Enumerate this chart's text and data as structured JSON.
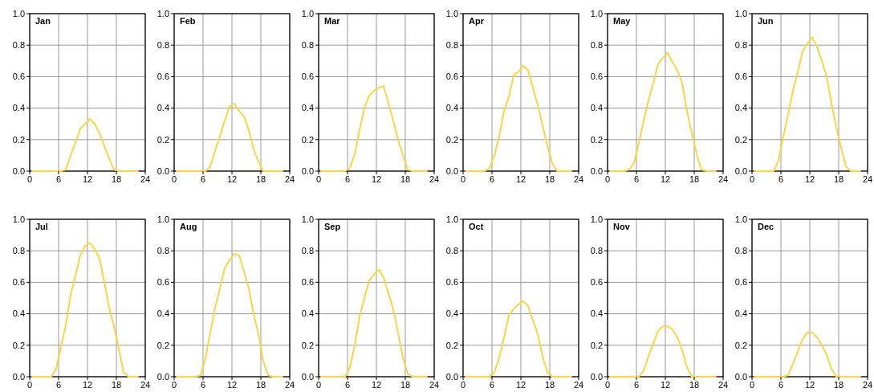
{
  "chart_data": [
    {
      "type": "line",
      "title": "Jan",
      "x": [
        0.5,
        1.5,
        2.5,
        3.5,
        4.5,
        5.5,
        6.5,
        7.5,
        8.5,
        9.5,
        10.5,
        11.5,
        12.5,
        13.5,
        14.5,
        15.5,
        16.5,
        17.5,
        18.5,
        19.5,
        20.5,
        21.5,
        22.5
      ],
      "series": [
        {
          "color": "#fdd541",
          "values": [
            0,
            0,
            0,
            0,
            0,
            0,
            0,
            0.01,
            0.1,
            0.18,
            0.27,
            0.3,
            0.33,
            0.3,
            0.24,
            0.16,
            0.08,
            0.01,
            0,
            0,
            0,
            0,
            0
          ]
        }
      ],
      "xlim": [
        0,
        24
      ],
      "ylim": [
        0,
        1
      ],
      "xticks": [
        0,
        6,
        12,
        18,
        24
      ],
      "yticks": [
        {
          "value": 0,
          "label": "0.0"
        },
        {
          "value": 0.2,
          "label": "0.2"
        },
        {
          "value": 0.4,
          "label": "0.4"
        },
        {
          "value": 0.6,
          "label": "0.6"
        },
        {
          "value": 0.8,
          "label": "0.8"
        },
        {
          "value": 1,
          "label": "1.0"
        }
      ],
      "grid": true
    },
    {
      "type": "line",
      "title": "Feb",
      "x": [
        0.5,
        1.5,
        2.5,
        3.5,
        4.5,
        5.5,
        6.5,
        7.5,
        8.5,
        9.5,
        10.5,
        11.5,
        12.5,
        13.5,
        14.5,
        15.5,
        16.5,
        17.5,
        18.5,
        19.5,
        20.5,
        21.5,
        22.5
      ],
      "series": [
        {
          "color": "#fdd541",
          "values": [
            0,
            0,
            0,
            0,
            0,
            0,
            0,
            0.03,
            0.13,
            0.22,
            0.32,
            0.41,
            0.43,
            0.38,
            0.35,
            0.26,
            0.14,
            0.06,
            0,
            0,
            0,
            0,
            0
          ]
        }
      ],
      "xlim": [
        0,
        24
      ],
      "ylim": [
        0,
        1
      ],
      "xticks": [
        0,
        6,
        12,
        18,
        24
      ],
      "yticks": [
        {
          "value": 0,
          "label": "0.0"
        },
        {
          "value": 0.2,
          "label": "0.2"
        },
        {
          "value": 0.4,
          "label": "0.4"
        },
        {
          "value": 0.6,
          "label": "0.6"
        },
        {
          "value": 0.8,
          "label": "0.8"
        },
        {
          "value": 1,
          "label": "1.0"
        }
      ],
      "grid": true
    },
    {
      "type": "line",
      "title": "Mar",
      "x": [
        0.5,
        1.5,
        2.5,
        3.5,
        4.5,
        5.5,
        6.5,
        7.5,
        8.5,
        9.5,
        10.5,
        11.5,
        12.5,
        13.5,
        14.5,
        15.5,
        16.5,
        17.5,
        18.5,
        19.5,
        20.5,
        21.5,
        22.5
      ],
      "series": [
        {
          "color": "#fdd541",
          "values": [
            0,
            0,
            0,
            0,
            0,
            0,
            0.02,
            0.11,
            0.26,
            0.4,
            0.48,
            0.51,
            0.53,
            0.54,
            0.43,
            0.32,
            0.2,
            0.1,
            0.01,
            0,
            0,
            0,
            0
          ]
        }
      ],
      "xlim": [
        0,
        24
      ],
      "ylim": [
        0,
        1
      ],
      "xticks": [
        0,
        6,
        12,
        18,
        24
      ],
      "yticks": [
        {
          "value": 0,
          "label": "0.0"
        },
        {
          "value": 0.2,
          "label": "0.2"
        },
        {
          "value": 0.4,
          "label": "0.4"
        },
        {
          "value": 0.6,
          "label": "0.6"
        },
        {
          "value": 0.8,
          "label": "0.8"
        },
        {
          "value": 1,
          "label": "1.0"
        }
      ],
      "grid": true
    },
    {
      "type": "line",
      "title": "Apr",
      "x": [
        0.5,
        1.5,
        2.5,
        3.5,
        4.5,
        5.5,
        6.5,
        7.5,
        8.5,
        9.5,
        10.5,
        11.5,
        12.5,
        13.5,
        14.5,
        15.5,
        16.5,
        17.5,
        18.5,
        19.5,
        20.5,
        21.5,
        22.5
      ],
      "series": [
        {
          "color": "#fdd541",
          "values": [
            0,
            0,
            0,
            0,
            0,
            0.02,
            0.1,
            0.22,
            0.38,
            0.47,
            0.61,
            0.63,
            0.67,
            0.64,
            0.53,
            0.42,
            0.29,
            0.16,
            0.05,
            0,
            0,
            0,
            0
          ]
        }
      ],
      "xlim": [
        0,
        24
      ],
      "ylim": [
        0,
        1
      ],
      "xticks": [
        0,
        6,
        12,
        18,
        24
      ],
      "yticks": [
        {
          "value": 0,
          "label": "0.0"
        },
        {
          "value": 0.2,
          "label": "0.2"
        },
        {
          "value": 0.4,
          "label": "0.4"
        },
        {
          "value": 0.6,
          "label": "0.6"
        },
        {
          "value": 0.8,
          "label": "0.8"
        },
        {
          "value": 1,
          "label": "1.0"
        }
      ],
      "grid": true
    },
    {
      "type": "line",
      "title": "May",
      "x": [
        0.5,
        1.5,
        2.5,
        3.5,
        4.5,
        5.5,
        6.5,
        7.5,
        8.5,
        9.5,
        10.5,
        11.5,
        12.5,
        13.5,
        14.5,
        15.5,
        16.5,
        17.5,
        18.5,
        19.5,
        20.5,
        21.5,
        22.5
      ],
      "series": [
        {
          "color": "#fdd541",
          "values": [
            0,
            0,
            0,
            0,
            0.01,
            0.05,
            0.18,
            0.32,
            0.45,
            0.56,
            0.68,
            0.72,
            0.75,
            0.69,
            0.64,
            0.56,
            0.38,
            0.24,
            0.11,
            0.01,
            0,
            0,
            0
          ]
        }
      ],
      "xlim": [
        0,
        24
      ],
      "ylim": [
        0,
        1
      ],
      "xticks": [
        0,
        6,
        12,
        18,
        24
      ],
      "yticks": [
        {
          "value": 0,
          "label": "0.0"
        },
        {
          "value": 0.2,
          "label": "0.2"
        },
        {
          "value": 0.4,
          "label": "0.4"
        },
        {
          "value": 0.6,
          "label": "0.6"
        },
        {
          "value": 0.8,
          "label": "0.8"
        },
        {
          "value": 1,
          "label": "1.0"
        }
      ],
      "grid": true
    },
    {
      "type": "line",
      "title": "Jun",
      "x": [
        0.5,
        1.5,
        2.5,
        3.5,
        4.5,
        5.5,
        6.5,
        7.5,
        8.5,
        9.5,
        10.5,
        11.5,
        12.5,
        13.5,
        14.5,
        15.5,
        16.5,
        17.5,
        18.5,
        19.5,
        20.5,
        21.5,
        22.5
      ],
      "series": [
        {
          "color": "#fdd541",
          "values": [
            0,
            0,
            0,
            0,
            0,
            0.07,
            0.22,
            0.36,
            0.51,
            0.63,
            0.76,
            0.81,
            0.85,
            0.79,
            0.7,
            0.6,
            0.43,
            0.28,
            0.15,
            0.03,
            0,
            0,
            0
          ]
        }
      ],
      "xlim": [
        0,
        24
      ],
      "ylim": [
        0,
        1
      ],
      "xticks": [
        0,
        6,
        12,
        18,
        24
      ],
      "yticks": [
        {
          "value": 0,
          "label": "0.0"
        },
        {
          "value": 0.2,
          "label": "0.2"
        },
        {
          "value": 0.4,
          "label": "0.4"
        },
        {
          "value": 0.6,
          "label": "0.6"
        },
        {
          "value": 0.8,
          "label": "0.8"
        },
        {
          "value": 1,
          "label": "1.0"
        }
      ],
      "grid": true
    },
    {
      "type": "line",
      "title": "Jul",
      "x": [
        0.5,
        1.5,
        2.5,
        3.5,
        4.5,
        5.5,
        6.5,
        7.5,
        8.5,
        9.5,
        10.5,
        11.5,
        12.5,
        13.5,
        14.5,
        15.5,
        16.5,
        17.5,
        18.5,
        19.5,
        20.5,
        21.5,
        22.5
      ],
      "series": [
        {
          "color": "#fdd541",
          "values": [
            0,
            0,
            0,
            0,
            0,
            0.05,
            0.19,
            0.33,
            0.52,
            0.64,
            0.77,
            0.83,
            0.85,
            0.81,
            0.75,
            0.6,
            0.44,
            0.32,
            0.18,
            0.03,
            0,
            0,
            0
          ]
        }
      ],
      "xlim": [
        0,
        24
      ],
      "ylim": [
        0,
        1
      ],
      "xticks": [
        0,
        6,
        12,
        18,
        24
      ],
      "yticks": [
        {
          "value": 0,
          "label": "0.0"
        },
        {
          "value": 0.2,
          "label": "0.2"
        },
        {
          "value": 0.4,
          "label": "0.4"
        },
        {
          "value": 0.6,
          "label": "0.6"
        },
        {
          "value": 0.8,
          "label": "0.8"
        },
        {
          "value": 1,
          "label": "1.0"
        }
      ],
      "grid": true
    },
    {
      "type": "line",
      "title": "Aug",
      "x": [
        0.5,
        1.5,
        2.5,
        3.5,
        4.5,
        5.5,
        6.5,
        7.5,
        8.5,
        9.5,
        10.5,
        11.5,
        12.5,
        13.5,
        14.5,
        15.5,
        16.5,
        17.5,
        18.5,
        19.5,
        20.5,
        21.5,
        22.5
      ],
      "series": [
        {
          "color": "#fdd541",
          "values": [
            0,
            0,
            0,
            0,
            0,
            0.01,
            0.12,
            0.28,
            0.44,
            0.56,
            0.69,
            0.74,
            0.78,
            0.77,
            0.67,
            0.56,
            0.4,
            0.27,
            0.1,
            0.01,
            0,
            0,
            0
          ]
        }
      ],
      "xlim": [
        0,
        24
      ],
      "ylim": [
        0,
        1
      ],
      "xticks": [
        0,
        6,
        12,
        18,
        24
      ],
      "yticks": [
        {
          "value": 0,
          "label": "0.0"
        },
        {
          "value": 0.2,
          "label": "0.2"
        },
        {
          "value": 0.4,
          "label": "0.4"
        },
        {
          "value": 0.6,
          "label": "0.6"
        },
        {
          "value": 0.8,
          "label": "0.8"
        },
        {
          "value": 1,
          "label": "1.0"
        }
      ],
      "grid": true
    },
    {
      "type": "line",
      "title": "Sep",
      "x": [
        0.5,
        1.5,
        2.5,
        3.5,
        4.5,
        5.5,
        6.5,
        7.5,
        8.5,
        9.5,
        10.5,
        11.5,
        12.5,
        13.5,
        14.5,
        15.5,
        16.5,
        17.5,
        18.5,
        19.5,
        20.5,
        21.5,
        22.5
      ],
      "series": [
        {
          "color": "#fdd541",
          "values": [
            0,
            0,
            0,
            0,
            0,
            0,
            0.06,
            0.2,
            0.38,
            0.5,
            0.61,
            0.65,
            0.68,
            0.63,
            0.53,
            0.43,
            0.28,
            0.12,
            0.02,
            0,
            0,
            0,
            0
          ]
        }
      ],
      "xlim": [
        0,
        24
      ],
      "ylim": [
        0,
        1
      ],
      "xticks": [
        0,
        6,
        12,
        18,
        24
      ],
      "yticks": [
        {
          "value": 0,
          "label": "0.0"
        },
        {
          "value": 0.2,
          "label": "0.2"
        },
        {
          "value": 0.4,
          "label": "0.4"
        },
        {
          "value": 0.6,
          "label": "0.6"
        },
        {
          "value": 0.8,
          "label": "0.8"
        },
        {
          "value": 1,
          "label": "1.0"
        }
      ],
      "grid": true
    },
    {
      "type": "line",
      "title": "Oct",
      "x": [
        0.5,
        1.5,
        2.5,
        3.5,
        4.5,
        5.5,
        6.5,
        7.5,
        8.5,
        9.5,
        10.5,
        11.5,
        12.5,
        13.5,
        14.5,
        15.5,
        16.5,
        17.5,
        18.5,
        19.5,
        20.5,
        21.5,
        22.5
      ],
      "series": [
        {
          "color": "#fdd541",
          "values": [
            0,
            0,
            0,
            0,
            0,
            0,
            0.03,
            0.12,
            0.25,
            0.39,
            0.43,
            0.46,
            0.48,
            0.45,
            0.36,
            0.27,
            0.13,
            0.03,
            0,
            0,
            0,
            0,
            0
          ]
        }
      ],
      "xlim": [
        0,
        24
      ],
      "ylim": [
        0,
        1
      ],
      "xticks": [
        0,
        6,
        12,
        18,
        24
      ],
      "yticks": [
        {
          "value": 0,
          "label": "0.0"
        },
        {
          "value": 0.2,
          "label": "0.2"
        },
        {
          "value": 0.4,
          "label": "0.4"
        },
        {
          "value": 0.6,
          "label": "0.6"
        },
        {
          "value": 0.8,
          "label": "0.8"
        },
        {
          "value": 1,
          "label": "1.0"
        }
      ],
      "grid": true
    },
    {
      "type": "line",
      "title": "Nov",
      "x": [
        0.5,
        1.5,
        2.5,
        3.5,
        4.5,
        5.5,
        6.5,
        7.5,
        8.5,
        9.5,
        10.5,
        11.5,
        12.5,
        13.5,
        14.5,
        15.5,
        16.5,
        17.5,
        18.5,
        19.5,
        20.5,
        21.5,
        22.5
      ],
      "series": [
        {
          "color": "#fdd541",
          "values": [
            0,
            0,
            0,
            0,
            0,
            0,
            0,
            0.04,
            0.13,
            0.21,
            0.29,
            0.32,
            0.32,
            0.3,
            0.25,
            0.17,
            0.06,
            0,
            0,
            0,
            0,
            0,
            0
          ]
        }
      ],
      "xlim": [
        0,
        24
      ],
      "ylim": [
        0,
        1
      ],
      "xticks": [
        0,
        6,
        12,
        18,
        24
      ],
      "yticks": [
        {
          "value": 0,
          "label": "0.0"
        },
        {
          "value": 0.2,
          "label": "0.2"
        },
        {
          "value": 0.4,
          "label": "0.4"
        },
        {
          "value": 0.6,
          "label": "0.6"
        },
        {
          "value": 0.8,
          "label": "0.8"
        },
        {
          "value": 1,
          "label": "1.0"
        }
      ],
      "grid": true
    },
    {
      "type": "line",
      "title": "Dec",
      "x": [
        0.5,
        1.5,
        2.5,
        3.5,
        4.5,
        5.5,
        6.5,
        7.5,
        8.5,
        9.5,
        10.5,
        11.5,
        12.5,
        13.5,
        14.5,
        15.5,
        16.5,
        17.5,
        18.5,
        19.5,
        20.5,
        21.5,
        22.5
      ],
      "series": [
        {
          "color": "#fdd541",
          "values": [
            0,
            0,
            0,
            0,
            0,
            0,
            0,
            0.01,
            0.08,
            0.16,
            0.24,
            0.28,
            0.28,
            0.25,
            0.2,
            0.14,
            0.05,
            0,
            0,
            0,
            0,
            0,
            0
          ]
        }
      ],
      "xlim": [
        0,
        24
      ],
      "ylim": [
        0,
        1
      ],
      "xticks": [
        0,
        6,
        12,
        18,
        24
      ],
      "yticks": [
        {
          "value": 0,
          "label": "0.0"
        },
        {
          "value": 0.2,
          "label": "0.2"
        },
        {
          "value": 0.4,
          "label": "0.4"
        },
        {
          "value": 0.6,
          "label": "0.6"
        },
        {
          "value": 0.8,
          "label": "0.8"
        },
        {
          "value": 1,
          "label": "1.0"
        }
      ],
      "grid": true
    }
  ]
}
